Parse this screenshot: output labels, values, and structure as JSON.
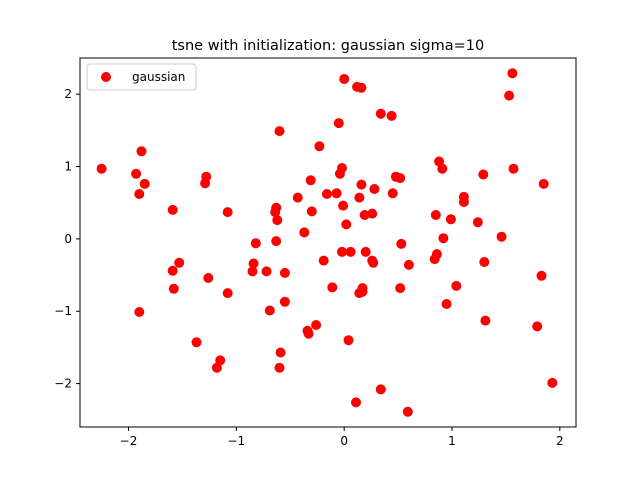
{
  "chart_data": {
    "type": "scatter",
    "title": "tsne with initialization: gaussian sigma=10",
    "xlabel": "",
    "ylabel": "",
    "xlim": [
      -2.45,
      2.15
    ],
    "ylim": [
      -2.6,
      2.5
    ],
    "xticks": [
      -2,
      -1,
      0,
      1,
      2
    ],
    "yticks": [
      -2,
      -1,
      0,
      1,
      2
    ],
    "xtick_labels": [
      "−2",
      "−1",
      "0",
      "1",
      "2"
    ],
    "ytick_labels": [
      "−2",
      "−1",
      "0",
      "1",
      "2"
    ],
    "legend_position": "top-left",
    "grid": false,
    "series": [
      {
        "name": "gaussian",
        "color": "#ff0000",
        "points": [
          [
            -2.25,
            0.97
          ],
          [
            -1.93,
            0.9
          ],
          [
            -1.9,
            0.62
          ],
          [
            -1.88,
            1.21
          ],
          [
            -1.85,
            0.76
          ],
          [
            -1.9,
            -1.01
          ],
          [
            -1.59,
            0.4
          ],
          [
            -1.59,
            -0.44
          ],
          [
            -1.58,
            -0.69
          ],
          [
            -1.53,
            -0.33
          ],
          [
            -1.37,
            -1.43
          ],
          [
            -1.28,
            0.86
          ],
          [
            -1.29,
            0.77
          ],
          [
            -1.26,
            -0.54
          ],
          [
            -1.18,
            -1.78
          ],
          [
            -1.15,
            -1.68
          ],
          [
            -1.08,
            0.37
          ],
          [
            -1.08,
            -0.75
          ],
          [
            -0.85,
            -0.45
          ],
          [
            -0.84,
            -0.34
          ],
          [
            -0.82,
            -0.06
          ],
          [
            -0.72,
            -0.45
          ],
          [
            -0.69,
            -0.99
          ],
          [
            -0.64,
            0.37
          ],
          [
            -0.63,
            0.43
          ],
          [
            -0.62,
            0.26
          ],
          [
            -0.63,
            -0.03
          ],
          [
            -0.6,
            1.49
          ],
          [
            -0.6,
            -1.78
          ],
          [
            -0.59,
            -1.57
          ],
          [
            -0.55,
            -0.47
          ],
          [
            -0.55,
            -0.87
          ],
          [
            -0.43,
            0.57
          ],
          [
            -0.37,
            0.09
          ],
          [
            -0.34,
            -1.27
          ],
          [
            -0.33,
            -1.31
          ],
          [
            -0.31,
            0.81
          ],
          [
            -0.3,
            0.38
          ],
          [
            -0.26,
            -1.19
          ],
          [
            -0.23,
            1.28
          ],
          [
            -0.19,
            -0.3
          ],
          [
            -0.16,
            0.62
          ],
          [
            -0.11,
            -0.67
          ],
          [
            -0.07,
            0.63
          ],
          [
            -0.05,
            1.6
          ],
          [
            -0.04,
            0.9
          ],
          [
            -0.02,
            0.98
          ],
          [
            -0.02,
            -0.18
          ],
          [
            -0.01,
            0.46
          ],
          [
            0.0,
            2.21
          ],
          [
            0.02,
            0.2
          ],
          [
            0.04,
            -1.4
          ],
          [
            0.06,
            -0.18
          ],
          [
            0.11,
            -2.26
          ],
          [
            0.12,
            2.1
          ],
          [
            0.14,
            0.57
          ],
          [
            0.14,
            -0.75
          ],
          [
            0.16,
            0.75
          ],
          [
            0.16,
            2.09
          ],
          [
            0.17,
            -0.73
          ],
          [
            0.17,
            -0.68
          ],
          [
            0.19,
            0.33
          ],
          [
            0.2,
            -0.18
          ],
          [
            0.26,
            0.35
          ],
          [
            0.26,
            -0.3
          ],
          [
            0.27,
            -0.33
          ],
          [
            0.28,
            0.69
          ],
          [
            0.34,
            1.73
          ],
          [
            0.34,
            -2.08
          ],
          [
            0.44,
            1.7
          ],
          [
            0.45,
            0.63
          ],
          [
            0.48,
            0.86
          ],
          [
            0.52,
            0.84
          ],
          [
            0.52,
            -0.68
          ],
          [
            0.53,
            -0.07
          ],
          [
            0.59,
            -2.39
          ],
          [
            0.6,
            -0.36
          ],
          [
            0.84,
            -0.28
          ],
          [
            0.85,
            0.33
          ],
          [
            0.86,
            -0.21
          ],
          [
            0.88,
            1.07
          ],
          [
            0.91,
            0.97
          ],
          [
            0.92,
            0.01
          ],
          [
            0.95,
            -0.9
          ],
          [
            0.99,
            0.27
          ],
          [
            1.04,
            -0.65
          ],
          [
            1.11,
            0.58
          ],
          [
            1.11,
            0.51
          ],
          [
            1.24,
            0.23
          ],
          [
            1.29,
            0.89
          ],
          [
            1.3,
            -0.32
          ],
          [
            1.31,
            -1.13
          ],
          [
            1.46,
            0.03
          ],
          [
            1.53,
            1.98
          ],
          [
            1.56,
            2.29
          ],
          [
            1.57,
            0.97
          ],
          [
            1.79,
            -1.21
          ],
          [
            1.83,
            -0.51
          ],
          [
            1.85,
            0.76
          ],
          [
            1.93,
            -1.99
          ]
        ]
      }
    ]
  }
}
